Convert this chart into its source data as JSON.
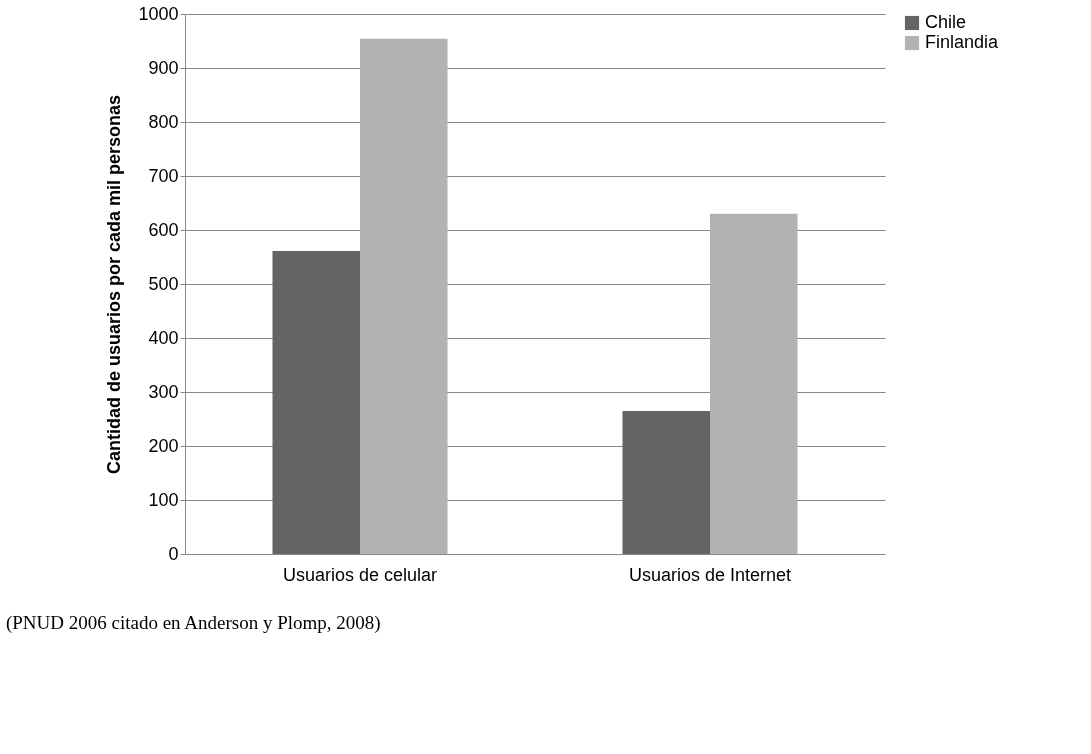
{
  "chart_data": {
    "type": "bar",
    "ylabel": "Cantidad de usuarios por cada mil personas",
    "categories": [
      "Usuarios de celular",
      "Usuarios de Internet"
    ],
    "series": [
      {
        "name": "Chile",
        "color": "#646464",
        "values": [
          561,
          265
        ]
      },
      {
        "name": "Finlandia",
        "color": "#b2b2b2",
        "values": [
          954,
          630
        ]
      }
    ],
    "ylim": [
      0,
      1000
    ],
    "yticks": [
      0,
      100,
      200,
      300,
      400,
      500,
      600,
      700,
      800,
      900,
      1000
    ],
    "grid": "y",
    "legend": "right",
    "annotations": [
      "(PNUD 2006 citado en Anderson y Plomp, 2008)"
    ]
  }
}
